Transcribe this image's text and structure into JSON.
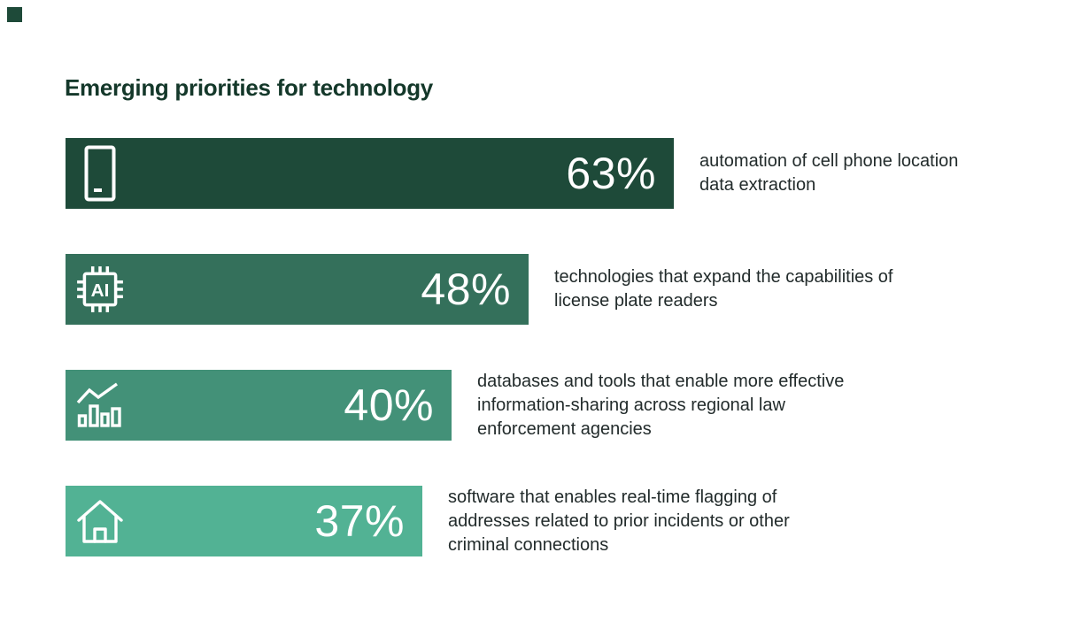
{
  "page": {
    "background_color": "#FFFFFF",
    "heading": "Emerging priorities for technology",
    "heading_color": "#14382A",
    "corner_square_color": "#1E4A39",
    "description_text_color": "#222B2B",
    "value_text_color": "#FFFFFF"
  },
  "chart_data": {
    "type": "bar",
    "orientation": "horizontal",
    "title": "Emerging priorities for technology",
    "unit": "%",
    "xlim": [
      0,
      100
    ],
    "grid": false,
    "legend": "none",
    "categories": [
      "automation of cell phone location data extraction",
      "technologies that expand the capabilities of license plate readers",
      "databases and tools that enable more effective information-sharing across regional law enforcement agencies",
      "software that enables real-time flagging of addresses related to prior incidents or other criminal connections"
    ],
    "values": [
      63,
      48,
      40,
      37
    ],
    "bars": [
      {
        "value": 63,
        "display": "63%",
        "icon": "smartphone-icon",
        "color": "#1E4A39",
        "description": "automation of cell phone location data extraction",
        "description_lines": [
          "automation of cell phone location",
          "data extraction"
        ]
      },
      {
        "value": 48,
        "display": "48%",
        "icon": "ai-chip-icon",
        "color": "#34705B",
        "description": "technologies that expand the capabilities of license plate readers",
        "description_lines": [
          "technologies that expand the capabilities of",
          "license plate readers"
        ]
      },
      {
        "value": 40,
        "display": "40%",
        "icon": "bar-chart-trend-icon",
        "color": "#439178",
        "description": "databases and tools that enable more effective information-sharing across regional law enforcement agencies",
        "description_lines": [
          "databases and tools that enable more effective",
          "information-sharing across regional law",
          "enforcement agencies"
        ]
      },
      {
        "value": 37,
        "display": "37%",
        "icon": "house-icon",
        "color": "#52B294",
        "description": "software that enables real-time flagging of addresses related to prior incidents or other criminal connections",
        "description_lines": [
          "software that enables real-time flagging of",
          "addresses related to prior incidents or other",
          "criminal connections"
        ]
      }
    ]
  }
}
